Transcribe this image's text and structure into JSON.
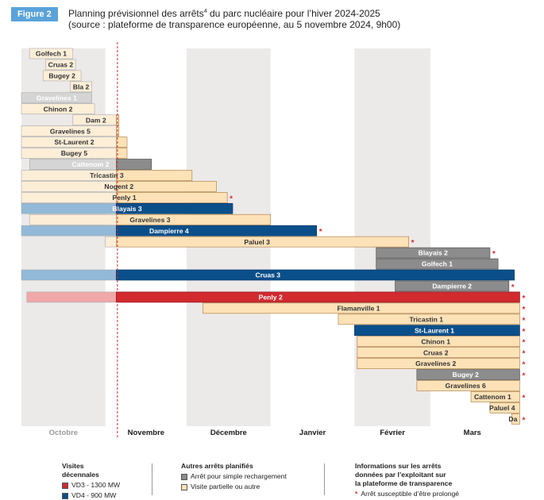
{
  "figure_label": "Figure 2",
  "title_line1_a": "Planning prévisionnel des arrêts",
  "title_sup": "4",
  "title_line1_b": " du parc nucléaire pour l’hiver 2024-2025",
  "title_line2": "(source : plateforme de transparence européenne, au 5 novembre 2024, 9h00)",
  "colors": {
    "vd3": "#d12a2f",
    "vd3_pre": "#f0a8a8",
    "vd4": "#0b4f8a",
    "vd4_pre": "#92b9d8",
    "recharge": "#8c8c8c",
    "recharge_pre": "#d5d5d5",
    "partielle": "#fde2b8",
    "partielle_pre": "#fdeed8",
    "marker": "#d42a2a",
    "cutoff": "#d42a2a",
    "shade": "#ece9e9"
  },
  "chart_data": {
    "type": "gantt",
    "title": "Planning prévisionnel des arrêts du parc nucléaire pour l’hiver 2024-2025",
    "x_unit": "days since 2024-10-01",
    "cutoff_day": 35,
    "months": [
      {
        "label": "Octobre",
        "start": 0,
        "end": 31,
        "shaded": true,
        "past": true
      },
      {
        "label": "Novembre",
        "start": 31,
        "end": 61,
        "shaded": false,
        "past": false
      },
      {
        "label": "Décembre",
        "start": 61,
        "end": 92,
        "shaded": true,
        "past": false
      },
      {
        "label": "Janvier",
        "start": 92,
        "end": 123,
        "shaded": false,
        "past": false
      },
      {
        "label": "Février",
        "start": 123,
        "end": 151,
        "shaded": true,
        "past": false
      },
      {
        "label": "Mars",
        "start": 151,
        "end": 182,
        "shaded": false,
        "past": false
      }
    ],
    "bars": [
      {
        "label": "Golfech 1",
        "start": 3,
        "end": 19,
        "type": "partielle",
        "star": false
      },
      {
        "label": "Cruas 2",
        "start": 9,
        "end": 20,
        "type": "partielle",
        "star": false
      },
      {
        "label": "Bugey 2",
        "start": 8,
        "end": 22,
        "type": "partielle",
        "star": false
      },
      {
        "label": "Bla 2",
        "start": 18,
        "end": 26,
        "type": "partielle",
        "star": false
      },
      {
        "label": "Gravelines 1",
        "start": 0,
        "end": 26,
        "type": "recharge",
        "star": false
      },
      {
        "label": "Chinon 2",
        "start": 0,
        "end": 27,
        "type": "partielle",
        "star": false
      },
      {
        "label": "Dam 2",
        "start": 19,
        "end": 36,
        "type": "partielle",
        "star": false
      },
      {
        "label": "Gravelines 5",
        "start": 0,
        "end": 36,
        "type": "partielle",
        "star": false
      },
      {
        "label": "St-Laurent 2",
        "start": 0,
        "end": 39,
        "type": "partielle",
        "star": false
      },
      {
        "label": "Bugey 5",
        "start": 0,
        "end": 39,
        "type": "partielle",
        "star": false
      },
      {
        "label": "Cattenom 2",
        "start": 3,
        "end": 48,
        "type": "recharge",
        "star": false
      },
      {
        "label": "Tricastin 3",
        "start": 0,
        "end": 63,
        "type": "partielle",
        "star": false
      },
      {
        "label": "Nogent 2",
        "start": 0,
        "end": 72,
        "type": "partielle",
        "star": false
      },
      {
        "label": "Penly 1",
        "start": 0,
        "end": 76,
        "type": "partielle",
        "star": true
      },
      {
        "label": "Blayais 3",
        "start": 0,
        "end": 78,
        "type": "vd4",
        "star": false
      },
      {
        "label": "Gravelines 3",
        "start": 3,
        "end": 92,
        "type": "partielle",
        "star": false
      },
      {
        "label": "Dampierre 4",
        "start": 0,
        "end": 109,
        "type": "vd4",
        "star": true
      },
      {
        "label": "Paluel 3",
        "start": 31,
        "end": 143,
        "type": "partielle",
        "star": true
      },
      {
        "label": "Blayais 2",
        "start": 131,
        "end": 173,
        "type": "recharge",
        "star": true
      },
      {
        "label": "Golfech 1",
        "start": 131,
        "end": 176,
        "type": "recharge",
        "star": false
      },
      {
        "label": "Cruas 3",
        "start": 0,
        "end": 182,
        "type": "vd4",
        "star": false
      },
      {
        "label": "Dampierre 2",
        "start": 138,
        "end": 180,
        "type": "recharge",
        "star": true
      },
      {
        "label": "Penly 2",
        "start": 2,
        "end": 184,
        "type": "vd3",
        "star": true
      },
      {
        "label": "Flamanville 1",
        "start": 67,
        "end": 184,
        "type": "partielle",
        "star": true
      },
      {
        "label": "Tricastin 1",
        "start": 117,
        "end": 184,
        "type": "partielle",
        "star": true
      },
      {
        "label": "St-Laurent 1",
        "start": 123,
        "end": 184,
        "type": "vd4",
        "star": true
      },
      {
        "label": "Chinon 1",
        "start": 124,
        "end": 184,
        "type": "partielle",
        "star": true
      },
      {
        "label": "Cruas 2",
        "start": 124,
        "end": 184,
        "type": "partielle",
        "star": true
      },
      {
        "label": "Gravelines 2",
        "start": 124,
        "end": 184,
        "type": "partielle",
        "star": true
      },
      {
        "label": "Bugey 2",
        "start": 146,
        "end": 184,
        "type": "recharge",
        "star": true
      },
      {
        "label": "Gravelines 6",
        "start": 146,
        "end": 184,
        "type": "partielle",
        "star": false
      },
      {
        "label": "Cattenom 1",
        "start": 166,
        "end": 184,
        "type": "partielle",
        "star": true
      },
      {
        "label": "Paluel 4",
        "start": 173,
        "end": 184,
        "type": "partielle",
        "star": false
      },
      {
        "label": "Da",
        "start": 181,
        "end": 184,
        "type": "partielle",
        "star": true
      }
    ]
  },
  "legend": {
    "group1_title_a": "Visites",
    "group1_title_b": "décennales",
    "vd3_label": "VD3 - 1300 MW",
    "vd4_label": "VD4 - 900 MW",
    "group2_title": "Autres arrêts planifiés",
    "recharge_label": "Arrêt pour simple rechargement",
    "partielle_label": "Visite partielle ou autre",
    "group3_title_a": "Informations sur les arrêts",
    "group3_title_b": "données par l’exploitant sur",
    "group3_title_c": "la plateforme de transparence",
    "star_symbol": "*",
    "star_label": "Arrêt susceptible d’être prolongé"
  }
}
